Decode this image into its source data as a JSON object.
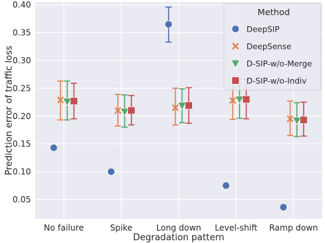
{
  "chart_data": {
    "type": "scatter",
    "title": "",
    "xlabel": "Degradation pattern",
    "ylabel": "Prediction error of traffic loss",
    "categories": [
      "No failure",
      "Spike",
      "Long down",
      "Level-shift",
      "Ramp down"
    ],
    "ylim": [
      0.015,
      0.405
    ],
    "yticks": [
      0.05,
      0.1,
      0.15,
      0.2,
      0.25,
      0.3,
      0.35,
      0.4
    ],
    "ytick_labels": [
      "0.05",
      "0.10",
      "0.15",
      "0.20",
      "0.25",
      "0.30",
      "0.35",
      "0.40"
    ],
    "grid": true,
    "background": "#eaeaf2",
    "legend": {
      "title": "Method",
      "placement": "top-right"
    },
    "series": [
      {
        "name": "DeepSIP",
        "marker": "circle",
        "color": "#4c72b0",
        "values": [
          0.143,
          0.1,
          0.365,
          0.075,
          0.036
        ],
        "err_low": [
          0.143,
          0.1,
          0.333,
          0.075,
          0.033
        ],
        "err_high": [
          0.143,
          0.1,
          0.396,
          0.075,
          0.04
        ]
      },
      {
        "name": "DeepSense",
        "marker": "x",
        "color": "#dd8452",
        "values": [
          0.229,
          0.21,
          0.215,
          0.228,
          0.195
        ],
        "err_low": [
          0.193,
          0.182,
          0.184,
          0.194,
          0.165
        ],
        "err_high": [
          0.263,
          0.239,
          0.25,
          0.265,
          0.227
        ]
      },
      {
        "name": "D-SIP-w/o-Merge",
        "marker": "triangle-down",
        "color": "#55a868",
        "values": [
          0.226,
          0.208,
          0.219,
          0.23,
          0.192
        ],
        "err_low": [
          0.193,
          0.18,
          0.188,
          0.196,
          0.163
        ],
        "err_high": [
          0.263,
          0.238,
          0.249,
          0.266,
          0.224
        ]
      },
      {
        "name": "D-SIP-w/o-Indiv",
        "marker": "square",
        "color": "#c44e52",
        "values": [
          0.227,
          0.21,
          0.219,
          0.23,
          0.193
        ],
        "err_low": [
          0.195,
          0.184,
          0.187,
          0.195,
          0.164
        ],
        "err_high": [
          0.259,
          0.237,
          0.251,
          0.266,
          0.225
        ]
      }
    ]
  }
}
